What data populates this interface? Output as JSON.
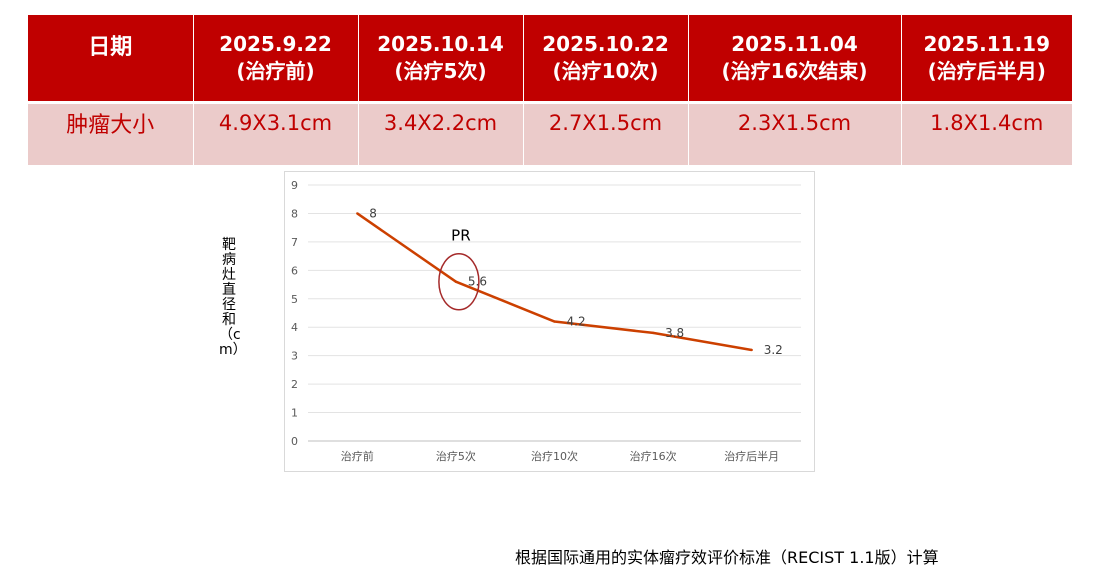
{
  "table": {
    "header": {
      "first": "日期",
      "columns": [
        {
          "date": "2025.9.22",
          "note": "(治疗前)"
        },
        {
          "date": "2025.10.14",
          "note": "(治疗5次)"
        },
        {
          "date": "2025.10.22",
          "note": "(治疗10次)"
        },
        {
          "date": "2025.11.04",
          "note": "(治疗16次结束)"
        },
        {
          "date": "2025.11.19",
          "note": "(治疗后半月)"
        }
      ]
    },
    "row": {
      "label": "肿瘤大小",
      "values": [
        "4.9X3.1cm",
        "3.4X2.2cm",
        "2.7X1.5cm",
        "2.3X1.5cm",
        "1.8X1.4cm"
      ]
    }
  },
  "chart_data": {
    "type": "line",
    "categories": [
      "治疗前",
      "治疗5次",
      "治疗10次",
      "治疗16次",
      "治疗后半月"
    ],
    "series": [
      {
        "values": [
          8,
          5.6,
          4.2,
          3.8,
          3.2
        ],
        "color": "#cc4000"
      }
    ],
    "data_labels": [
      "8",
      "5.6",
      "4.2",
      "3.8",
      "3.2"
    ],
    "ylabel": "靶病灶直径和（cm）",
    "ylim": [
      0,
      9
    ],
    "yticks": [
      0,
      1,
      2,
      3,
      4,
      5,
      6,
      7,
      8,
      9
    ],
    "grid": true,
    "annotation": {
      "text": "PR",
      "category_index": 1,
      "shape": "ellipse",
      "color": "#a52a2a"
    }
  },
  "footnote": "根据国际通用的实体瘤疗效评价标准（RECIST 1.1版）计算"
}
